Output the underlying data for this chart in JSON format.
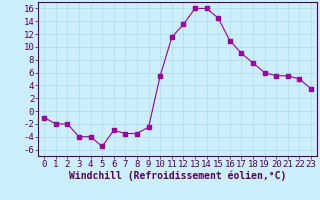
{
  "x": [
    0,
    1,
    2,
    3,
    4,
    5,
    6,
    7,
    8,
    9,
    10,
    11,
    12,
    13,
    14,
    15,
    16,
    17,
    18,
    19,
    20,
    21,
    22,
    23
  ],
  "y": [
    -1.0,
    -2.0,
    -2.0,
    -4.0,
    -4.0,
    -5.5,
    -3.0,
    -3.5,
    -3.5,
    -2.5,
    5.5,
    11.5,
    13.5,
    16.0,
    16.0,
    14.5,
    11.0,
    9.0,
    7.5,
    6.0,
    5.5,
    5.5,
    5.0,
    3.5
  ],
  "line_color": "#990099",
  "marker": "s",
  "marker_size": 2.5,
  "bg_color": "#cceeff",
  "grid_color": "#aadddd",
  "xlabel": "Windchill (Refroidissement éolien,°C)",
  "xlabel_fontsize": 7,
  "tick_fontsize": 6.5,
  "ylim": [
    -7,
    17
  ],
  "xlim": [
    -0.5,
    23.5
  ],
  "yticks": [
    -6,
    -4,
    -2,
    0,
    2,
    4,
    6,
    8,
    10,
    12,
    14,
    16
  ],
  "xticks": [
    0,
    1,
    2,
    3,
    4,
    5,
    6,
    7,
    8,
    9,
    10,
    11,
    12,
    13,
    14,
    15,
    16,
    17,
    18,
    19,
    20,
    21,
    22,
    23
  ]
}
